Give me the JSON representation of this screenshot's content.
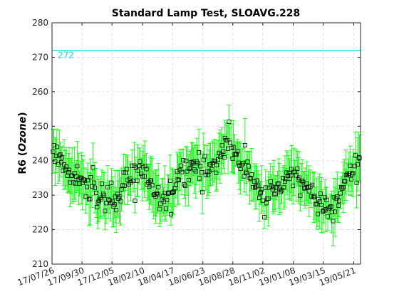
{
  "chart_data": {
    "type": "scatter",
    "title": "Standard Lamp Test, SLOAVG.228",
    "ylabel_prefix": "R6 (",
    "ylabel_italic": "Ozone",
    "ylabel_suffix": ")",
    "xlabel": "",
    "ylim": [
      210,
      280
    ],
    "yticks": [
      210,
      220,
      230,
      240,
      250,
      260,
      270,
      280
    ],
    "xlim": [
      "2017-07-26",
      "2019-06-05"
    ],
    "xticks": [
      "17/07/26",
      "17/09/30",
      "17/12/05",
      "18/02/10",
      "18/04/17",
      "18/06/23",
      "18/08/28",
      "18/11/02",
      "19/01/08",
      "19/03/15",
      "19/05/21"
    ],
    "xtick_dates": [
      "2017-07-26",
      "2017-09-30",
      "2017-12-05",
      "2018-02-10",
      "2018-04-17",
      "2018-06-23",
      "2018-08-28",
      "2018-11-02",
      "2019-01-08",
      "2019-03-15",
      "2019-05-21"
    ],
    "grid": true,
    "reference_line": {
      "value": 272,
      "label": "272",
      "color": "#00e0e0"
    },
    "marker_color": "#000000",
    "errorbar_color": "#00ff00",
    "anchors": [
      [
        "2017-07-26",
        241
      ],
      [
        "2017-08-10",
        242
      ],
      [
        "2017-08-25",
        238
      ],
      [
        "2017-09-05",
        234
      ],
      [
        "2017-09-20",
        236
      ],
      [
        "2017-10-05",
        233
      ],
      [
        "2017-10-20",
        231
      ],
      [
        "2017-11-05",
        230
      ],
      [
        "2017-11-20",
        229
      ],
      [
        "2017-12-05",
        230
      ],
      [
        "2017-12-20",
        231
      ],
      [
        "2018-01-05",
        234
      ],
      [
        "2018-01-20",
        236
      ],
      [
        "2018-02-05",
        238
      ],
      [
        "2018-02-20",
        236
      ],
      [
        "2018-03-05",
        232
      ],
      [
        "2018-03-20",
        228
      ],
      [
        "2018-04-05",
        229
      ],
      [
        "2018-04-20",
        233
      ],
      [
        "2018-05-05",
        237
      ],
      [
        "2018-05-20",
        238
      ],
      [
        "2018-06-05",
        240
      ],
      [
        "2018-06-20",
        239
      ],
      [
        "2018-07-05",
        237
      ],
      [
        "2018-07-20",
        239
      ],
      [
        "2018-08-05",
        243
      ],
      [
        "2018-08-20",
        245
      ],
      [
        "2018-09-05",
        241
      ],
      [
        "2018-09-20",
        238
      ],
      [
        "2018-10-05",
        236
      ],
      [
        "2018-10-20",
        232
      ],
      [
        "2018-11-05",
        230
      ],
      [
        "2018-11-20",
        231
      ],
      [
        "2018-12-05",
        232
      ],
      [
        "2018-12-20",
        234
      ],
      [
        "2019-01-05",
        236
      ],
      [
        "2019-01-20",
        235
      ],
      [
        "2019-02-05",
        233
      ],
      [
        "2019-02-20",
        231
      ],
      [
        "2019-03-05",
        228
      ],
      [
        "2019-03-20",
        225
      ],
      [
        "2019-04-05",
        226
      ],
      [
        "2019-04-20",
        230
      ],
      [
        "2019-05-05",
        235
      ],
      [
        "2019-05-20",
        238
      ],
      [
        "2019-06-05",
        241
      ]
    ],
    "point_count": 300,
    "scatter_spread": 3.5,
    "errorbar_halfwidth": [
      3,
      8
    ]
  }
}
